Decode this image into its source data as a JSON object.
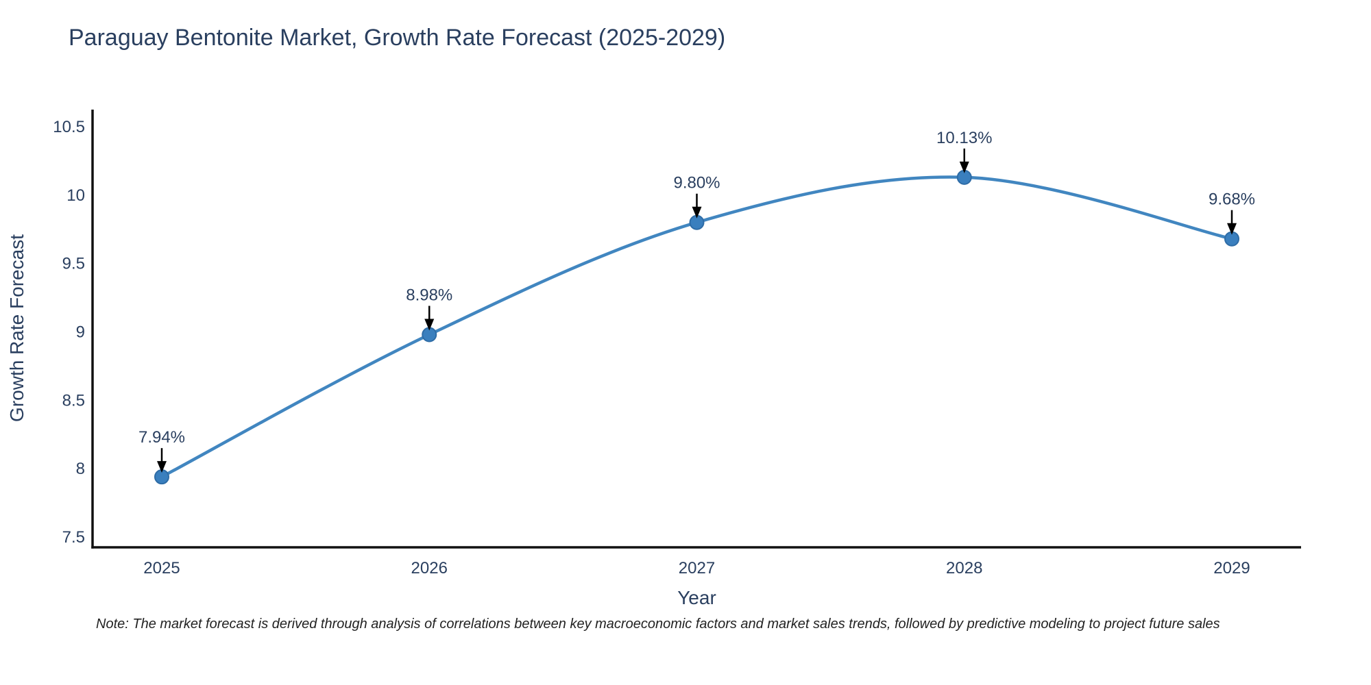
{
  "title": "Paraguay Bentonite Market, Growth Rate Forecast (2025-2029)",
  "note": "Note: The market forecast is derived through analysis of correlations between key macroeconomic factors and market sales trends, followed by predictive modeling to project future sales",
  "chart_data": {
    "type": "line",
    "line_shape": "spline",
    "title": "Paraguay Bentonite Market, Growth Rate Forecast (2025-2029)",
    "xlabel": "Year",
    "ylabel": "Growth Rate Forecast",
    "categories": [
      "2025",
      "2026",
      "2027",
      "2028",
      "2029"
    ],
    "series": [
      {
        "name": "Growth Rate Forecast",
        "values": [
          7.94,
          8.98,
          9.8,
          10.13,
          9.68
        ]
      }
    ],
    "point_labels": [
      "7.94%",
      "8.98%",
      "9.80%",
      "10.13%",
      "9.68%"
    ],
    "ytick_values": [
      7.5,
      8,
      8.5,
      9,
      9.5,
      10,
      10.5
    ],
    "ytick_labels": [
      "7.5",
      "8",
      "8.5",
      "9",
      "9.5",
      "10",
      "10.5"
    ],
    "ylim": [
      7.425,
      10.625
    ],
    "grid": false,
    "legend_position": "none",
    "colors": {
      "line": "#4186c0",
      "marker_fill": "#3a7fbe",
      "marker_edge": "#2e6ca6",
      "axis_line": "#111111",
      "text": "#2a3f5f",
      "annotation_arrow": "#000000"
    }
  }
}
